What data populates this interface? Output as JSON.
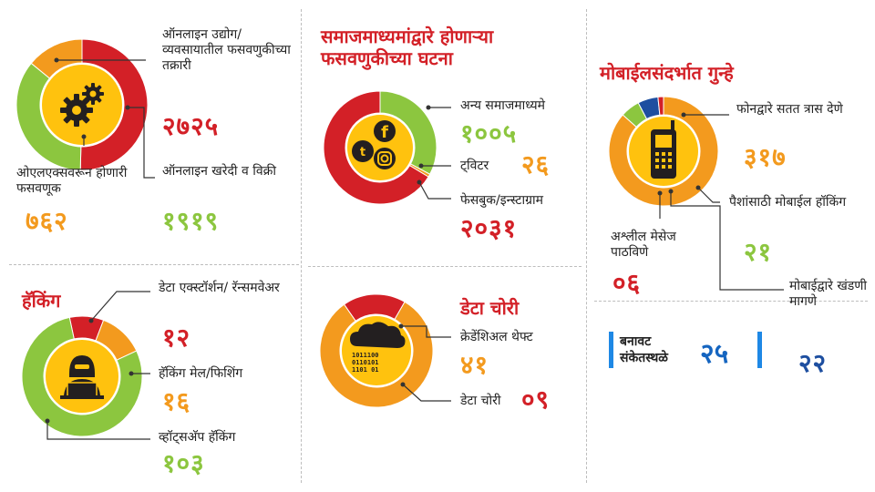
{
  "colors": {
    "red": "#d32027",
    "green": "#8cc63f",
    "orange": "#f39a1e",
    "blue": "#1e4fa0",
    "yellow": "#ffc20e",
    "dark": "#231f20"
  },
  "chart_data": [
    {
      "type": "pie",
      "id": "online",
      "title": "",
      "icon": "gears-icon",
      "slices": [
        {
          "label": "ऑनलाइन उद्योग/ व्यवसायातील फसवणुकीच्या तक्रारी",
          "value": 2725,
          "display": "२७२५",
          "color": "#d32027"
        },
        {
          "label": "ऑनलाइन खरेदी व विक्री",
          "value": 1919,
          "display": "१९१९",
          "color": "#8cc63f"
        },
        {
          "label": "ओएलएक्सवरून होणारी फसवणूक",
          "value": 762,
          "display": "७६२",
          "color": "#f39a1e"
        }
      ]
    },
    {
      "type": "pie",
      "id": "social",
      "title": "समाजमाध्यमांद्वारे होणाऱ्या फसवणुकीच्या घटना",
      "icon": "social-media-icon",
      "slices": [
        {
          "label": "अन्य समाजमाध्यमे",
          "value": 1005,
          "display": "१००५",
          "color": "#8cc63f"
        },
        {
          "label": "ट्विटर",
          "value": 26,
          "display": "२६",
          "color": "#f39a1e"
        },
        {
          "label": "फेसबुक/इन्स्टाग्राम",
          "value": 2031,
          "display": "२०३१",
          "color": "#d32027"
        }
      ]
    },
    {
      "type": "pie",
      "id": "mobile",
      "title": "मोबाईलसंदर्भात गुन्हे",
      "icon": "mobile-phone-icon",
      "slices": [
        {
          "label": "फोनद्वारे सतत त्रास देणे",
          "value": 317,
          "display": "३१७",
          "color": "#f39a1e"
        },
        {
          "label": "पैशांसाठी मोबाईल हॉकिंग",
          "value": 21,
          "display": "२१",
          "color": "#8cc63f"
        },
        {
          "label": "मोबाईद्वारे खंडणी मागणे",
          "value": 22,
          "display": "२२",
          "color": "#1e4fa0"
        },
        {
          "label": "अश्लील मेसेज पाठविणे",
          "value": 6,
          "display": "०६",
          "color": "#d32027"
        }
      ]
    },
    {
      "type": "pie",
      "id": "hacking",
      "title": "हॅकिंग",
      "icon": "hacker-icon",
      "slices": [
        {
          "label": "डेटा एक्स्टॉर्शन/ रॅन्समवेअर",
          "value": 12,
          "display": "१२",
          "color": "#d32027"
        },
        {
          "label": "हॅकिंग मेल/फिशिंग",
          "value": 16,
          "display": "१६",
          "color": "#f39a1e"
        },
        {
          "label": "व्हॉट्सअ‍ॅप हॅकिंग",
          "value": 103,
          "display": "१०३",
          "color": "#8cc63f"
        }
      ]
    },
    {
      "type": "pie",
      "id": "data",
      "title": "डेटा चोरी",
      "icon": "cloud-data-icon",
      "slices": [
        {
          "label": "क्रेडेंशिअल थेफ्ट",
          "value": 41,
          "display": "४१",
          "color": "#f39a1e"
        },
        {
          "label": "डेटा चोरी",
          "value": 9,
          "display": "०९",
          "color": "#d32027"
        }
      ]
    }
  ],
  "banner": {
    "label": "बनावट संकेतस्थळे",
    "value": 25,
    "display": "२५"
  }
}
